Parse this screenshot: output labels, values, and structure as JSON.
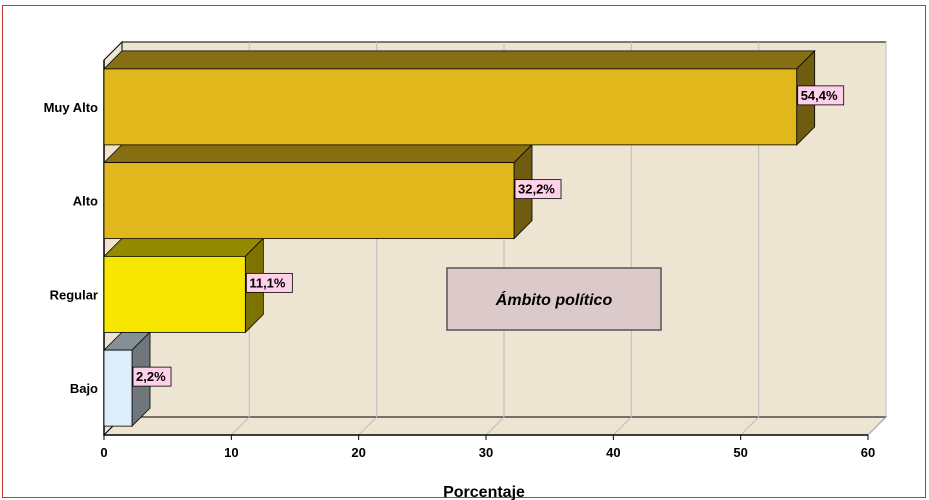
{
  "chart_data": {
    "type": "bar",
    "orientation": "horizontal",
    "categories": [
      "Muy Alto",
      "Alto",
      "Regular",
      "Bajo"
    ],
    "values": [
      54.4,
      32.2,
      11.1,
      2.2
    ],
    "data_labels": [
      "54,4%",
      "32,2%",
      "11,1%",
      "2,2%"
    ],
    "bar_colors": [
      "#e0b81c",
      "#e0b81c",
      "#f7e600",
      "#ddeefa"
    ],
    "xlabel": "Porcentaje",
    "xlim": [
      0,
      60
    ],
    "xticks": [
      0,
      10,
      20,
      30,
      40,
      50,
      60
    ],
    "grid": true,
    "annotation": "Ámbito político",
    "colors": {
      "wall": "#ede5d2",
      "label_bg": "#ffd0ea",
      "annotation_bg": "#dccaca",
      "grid": "#bdbdbd"
    }
  }
}
